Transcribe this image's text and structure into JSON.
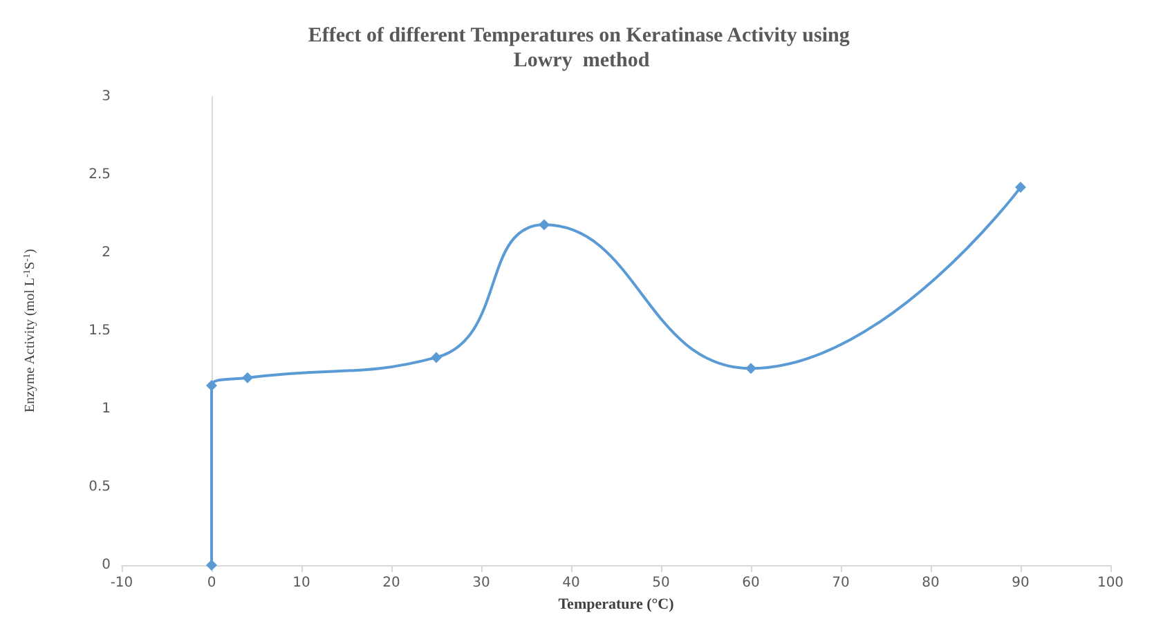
{
  "chart_data": {
    "type": "line",
    "title": "Effect of different Temperatures on Keratinase Activity using Lowry  method",
    "xlabel": "Temperature (°C)",
    "ylabel": "Enzyme Activity (mol L$^{-1}$S$^{-1}$)",
    "x": [
      0,
      0,
      4,
      25,
      37,
      60,
      90
    ],
    "series": [
      {
        "color": "#5b9bd5",
        "values": [
          0,
          1.15,
          1.2,
          1.33,
          2.18,
          1.26,
          2.42
        ]
      }
    ],
    "xlim": [
      -10,
      100
    ],
    "xticks": [
      -10,
      0,
      10,
      20,
      30,
      40,
      50,
      60,
      70,
      80,
      90,
      100
    ],
    "ylim": [
      0,
      3
    ],
    "yticks": [
      0,
      0.5,
      1,
      1.5,
      2,
      2.5,
      3
    ],
    "marker": "diamond",
    "line_style": "solid"
  }
}
